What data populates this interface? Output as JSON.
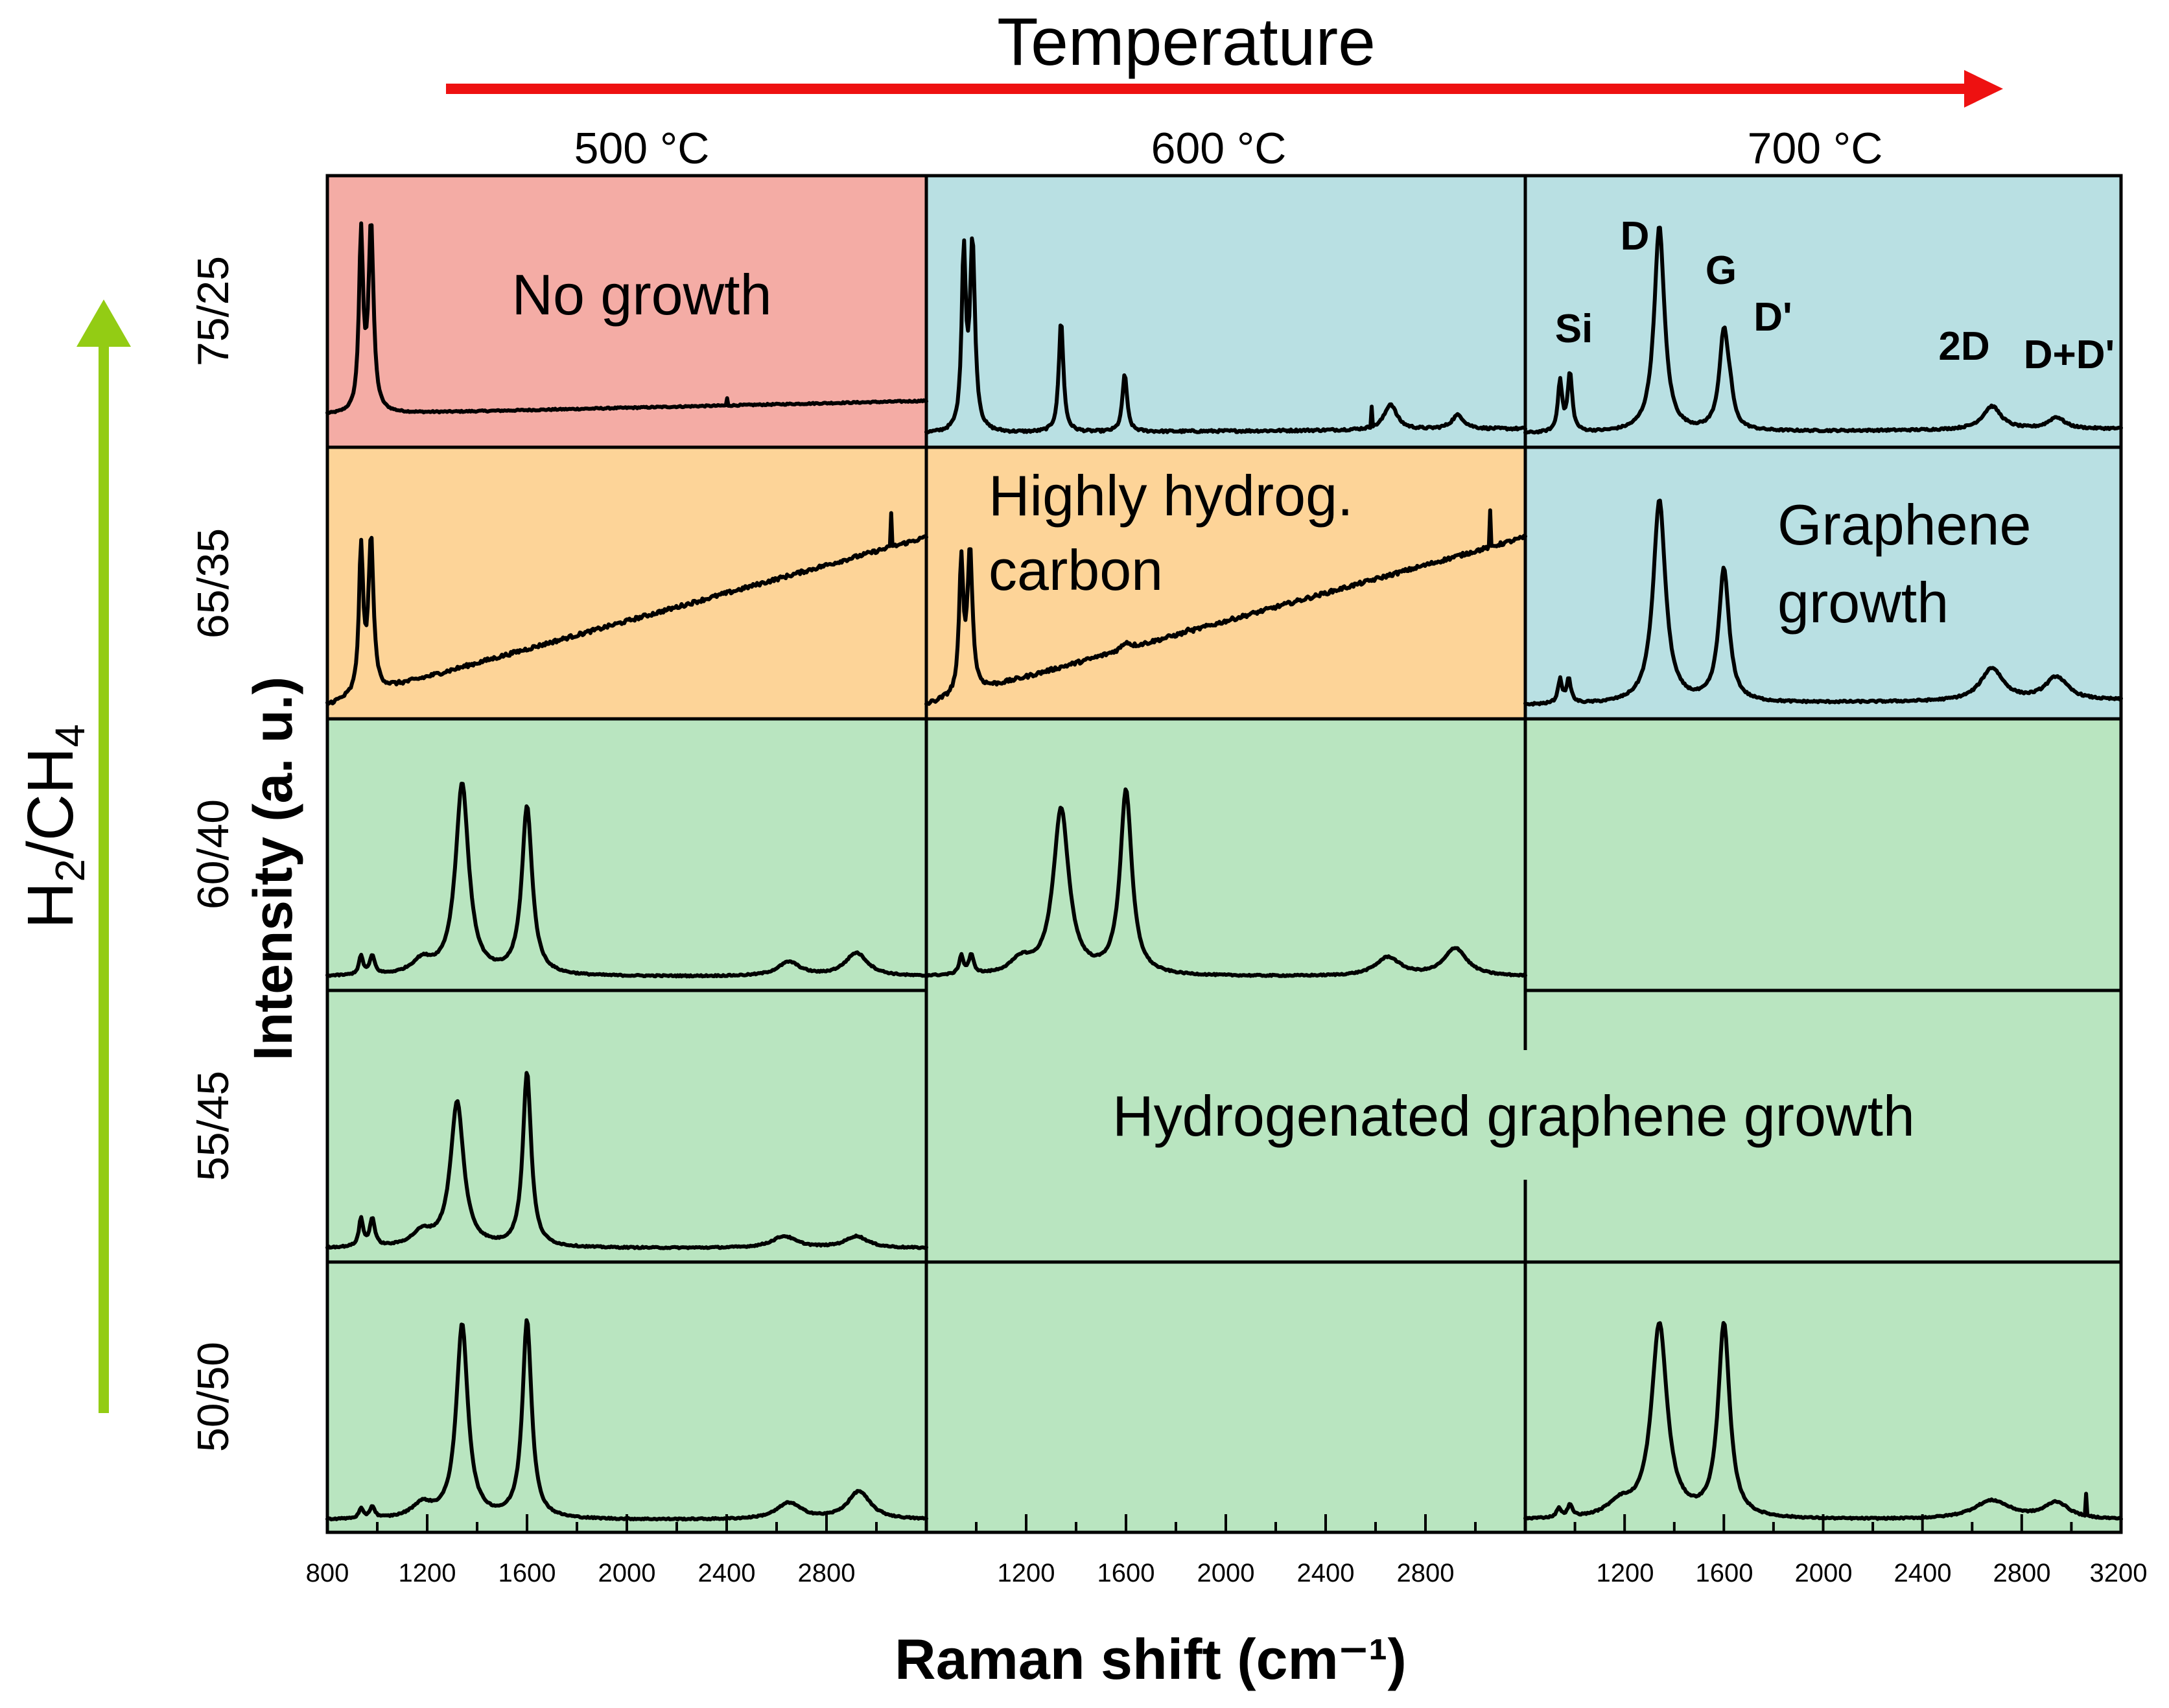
{
  "chart_data": {
    "type": "line",
    "title": "Temperature",
    "xlabel": "Raman shift (cm⁻¹)",
    "ylabel": "Intensity (a. u.)",
    "row_axis_label": "H2/CH4",
    "xlim": [
      800,
      3200
    ],
    "column_labels": [
      "500 °C",
      "600 °C",
      "700 °C"
    ],
    "row_labels": [
      "75/25",
      "65/35",
      "60/40",
      "55/45",
      "50/50"
    ],
    "x_ticks_col1": [
      "800",
      "1200",
      "1600",
      "2000",
      "2400",
      "2800"
    ],
    "x_ticks_col2": [
      "1200",
      "1600",
      "2000",
      "2400",
      "2800"
    ],
    "x_ticks_col3": [
      "1200",
      "1600",
      "2000",
      "2400",
      "2800",
      "3200"
    ],
    "region_colors": {
      "no_growth": "#f4aca5",
      "highly_hydrogenated": "#fdd498",
      "graphene": "#b9e0e3",
      "hydrogenated_graphene": "#b9e5c0"
    },
    "arrow_colors": {
      "temperature": "#ee1111",
      "ratio": "#93cc14"
    },
    "region_labels": {
      "no_growth": "No growth",
      "highly_hydrog_1": "Highly hydrog.",
      "highly_hydrog_2": "carbon",
      "graphene_1": "Graphene",
      "graphene_2": "growth",
      "hydrogenated_graphene": "Hydrogenated graphene growth"
    },
    "peak_labels": {
      "si": "Si",
      "d": "D",
      "g": "G",
      "dprime": "D'",
      "twod": "2D",
      "dplusdprime": "D+D'"
    },
    "cells": [
      {
        "row": 0,
        "col": 0,
        "region": "no_growth",
        "has_spectrum": true,
        "baseline": 0.1,
        "slope": 0.06,
        "noise": 0.003,
        "peaks": [
          [
            935,
            0.75,
            10
          ],
          [
            975,
            0.8,
            12
          ]
        ],
        "spikes": [
          [
            2400,
            0.03
          ]
        ]
      },
      {
        "row": 0,
        "col": 1,
        "region": "graphene",
        "has_spectrum": true,
        "baseline": 0.02,
        "slope": 0.02,
        "noise": 0.005,
        "peaks": [
          [
            950,
            0.75,
            10
          ],
          [
            985,
            0.8,
            12
          ],
          [
            1340,
            0.48,
            11
          ],
          [
            1595,
            0.25,
            11
          ],
          [
            2660,
            0.11,
            30
          ],
          [
            2930,
            0.06,
            30
          ]
        ],
        "spikes": [
          [
            2585,
            0.09
          ]
        ]
      },
      {
        "row": 0,
        "col": 2,
        "region": "graphene",
        "has_spectrum": true,
        "baseline": 0.02,
        "slope": 0.02,
        "noise": 0.004,
        "peaks": [
          [
            940,
            0.22,
            10
          ],
          [
            980,
            0.25,
            11
          ],
          [
            1340,
            0.88,
            25
          ],
          [
            1600,
            0.42,
            22
          ],
          [
            1625,
            0.08,
            15
          ],
          [
            2680,
            0.1,
            45
          ],
          [
            2940,
            0.05,
            40
          ]
        ],
        "spikes": []
      },
      {
        "row": 1,
        "col": 0,
        "region": "highly_hydrogenated",
        "has_spectrum": true,
        "baseline": 0.02,
        "slope": 0.72,
        "noise": 0.008,
        "peaks": [
          [
            935,
            0.62,
            10
          ],
          [
            975,
            0.65,
            12
          ]
        ],
        "spikes": [
          [
            3060,
            0.15
          ]
        ]
      },
      {
        "row": 1,
        "col": 1,
        "region": "highly_hydrogenated",
        "has_spectrum": true,
        "baseline": 0.02,
        "slope": 0.72,
        "noise": 0.008,
        "peaks": [
          [
            940,
            0.55,
            10
          ],
          [
            975,
            0.6,
            12
          ],
          [
            1600,
            0.03,
            20
          ]
        ],
        "spikes": [
          [
            3060,
            0.15
          ],
          [
            1850,
            0.02
          ]
        ]
      },
      {
        "row": 1,
        "col": 2,
        "region": "graphene",
        "has_spectrum": true,
        "baseline": 0.02,
        "slope": 0.02,
        "noise": 0.004,
        "peaks": [
          [
            940,
            0.1,
            10
          ],
          [
            975,
            0.1,
            11
          ],
          [
            1340,
            0.87,
            30
          ],
          [
            1600,
            0.57,
            25
          ],
          [
            2680,
            0.14,
            55
          ],
          [
            2940,
            0.1,
            55
          ]
        ],
        "spikes": []
      },
      {
        "row": 2,
        "col": 0,
        "region": "hydrogenated_graphene",
        "has_spectrum": true,
        "baseline": 0.02,
        "slope": 0.0,
        "noise": 0.003,
        "peaks": [
          [
            935,
            0.08,
            10
          ],
          [
            980,
            0.08,
            12
          ],
          [
            1340,
            0.82,
            32
          ],
          [
            1600,
            0.72,
            25
          ],
          [
            1180,
            0.06,
            50
          ],
          [
            2650,
            0.06,
            55
          ],
          [
            2920,
            0.1,
            55
          ]
        ],
        "spikes": []
      },
      {
        "row": 2,
        "col": 1,
        "region": "hydrogenated_graphene",
        "has_spectrum": true,
        "baseline": 0.02,
        "slope": 0.0,
        "noise": 0.003,
        "peaks": [
          [
            940,
            0.08,
            10
          ],
          [
            980,
            0.08,
            12
          ],
          [
            1340,
            0.71,
            38
          ],
          [
            1600,
            0.79,
            28
          ],
          [
            1180,
            0.06,
            50
          ],
          [
            2650,
            0.08,
            60
          ],
          [
            2920,
            0.12,
            55
          ]
        ],
        "spikes": []
      },
      {
        "row": 2,
        "col": 2,
        "region": "hydrogenated_graphene",
        "has_spectrum": false
      },
      {
        "row": 3,
        "col": 0,
        "region": "hydrogenated_graphene",
        "has_spectrum": true,
        "baseline": 0.02,
        "slope": 0.0,
        "noise": 0.003,
        "peaks": [
          [
            935,
            0.12,
            10
          ],
          [
            980,
            0.12,
            12
          ],
          [
            1320,
            0.62,
            32
          ],
          [
            1600,
            0.75,
            20
          ],
          [
            1180,
            0.06,
            50
          ],
          [
            2630,
            0.05,
            60
          ],
          [
            2920,
            0.05,
            55
          ]
        ],
        "spikes": []
      },
      {
        "row": 3,
        "col": 1,
        "region": "hydrogenated_graphene",
        "has_spectrum": false
      },
      {
        "row": 3,
        "col": 2,
        "region": "hydrogenated_graphene",
        "has_spectrum": false
      },
      {
        "row": 4,
        "col": 0,
        "region": "hydrogenated_graphene",
        "has_spectrum": true,
        "baseline": 0.02,
        "slope": 0.0,
        "noise": 0.003,
        "peaks": [
          [
            935,
            0.04,
            10
          ],
          [
            980,
            0.05,
            12
          ],
          [
            1340,
            0.83,
            28
          ],
          [
            1600,
            0.85,
            22
          ],
          [
            1180,
            0.06,
            50
          ],
          [
            2650,
            0.07,
            60
          ],
          [
            2930,
            0.12,
            55
          ]
        ],
        "spikes": []
      },
      {
        "row": 4,
        "col": 1,
        "region": "hydrogenated_graphene",
        "has_spectrum": false
      },
      {
        "row": 4,
        "col": 2,
        "region": "hydrogenated_graphene",
        "has_spectrum": true,
        "baseline": 0.02,
        "slope": 0.0,
        "noise": 0.003,
        "peaks": [
          [
            935,
            0.04,
            10
          ],
          [
            980,
            0.05,
            12
          ],
          [
            1340,
            0.83,
            38
          ],
          [
            1600,
            0.83,
            28
          ],
          [
            1180,
            0.06,
            60
          ],
          [
            2680,
            0.08,
            90
          ],
          [
            2940,
            0.07,
            60
          ]
        ],
        "spikes": [
          [
            3060,
            0.09
          ]
        ]
      }
    ]
  }
}
